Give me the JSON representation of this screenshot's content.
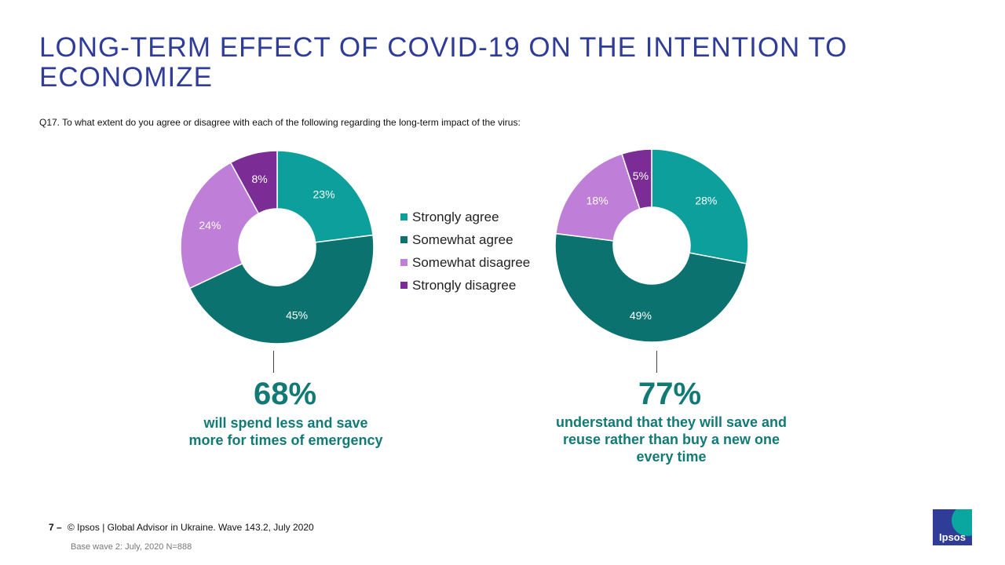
{
  "title": "LONG-TERM EFFECT OF COVID-19 ON THE INTENTION TO ECONOMIZE",
  "question": "Q17. To what extent do you agree or disagree with each of the following regarding the long-term impact of the virus:",
  "colors": {
    "strongly_agree": "#0c9f9b",
    "somewhat_agree": "#0c726f",
    "somewhat_disagree": "#bf7fd9",
    "strongly_disagree": "#7b2d95",
    "highlight_text": "#127a75",
    "title": "#2f3d99"
  },
  "chart_data": [
    {
      "type": "pie",
      "categories": [
        "Strongly agree",
        "Somewhat agree",
        "Somewhat disagree",
        "Strongly disagree"
      ],
      "values": [
        23,
        45,
        24,
        8
      ],
      "labels": [
        "23%",
        "45%",
        "24%",
        "8%"
      ],
      "legend": "right"
    },
    {
      "type": "pie",
      "categories": [
        "Strongly agree",
        "Somewhat agree",
        "Somewhat disagree",
        "Strongly disagree"
      ],
      "values": [
        28,
        49,
        18,
        5
      ],
      "labels": [
        "28%",
        "49%",
        "18%",
        "5%"
      ]
    }
  ],
  "legend": {
    "items": [
      "Strongly agree",
      "Somewhat agree",
      "Somewhat disagree",
      "Strongly disagree"
    ]
  },
  "highlights": [
    {
      "value": "68%",
      "lines": [
        "will spend less and save",
        "more for times of emergency"
      ]
    },
    {
      "value": "77%",
      "lines": [
        "understand that  they will save and",
        "reuse rather than buy a new one",
        "every time"
      ]
    }
  ],
  "footer": {
    "page_number": "7 –",
    "source": "© Ipsos | Global Advisor in Ukraine. Wave 143.2, July 2020",
    "base": "Base wave 2: July, 2020 N=888"
  },
  "logo": {
    "text": "Ipsos"
  }
}
